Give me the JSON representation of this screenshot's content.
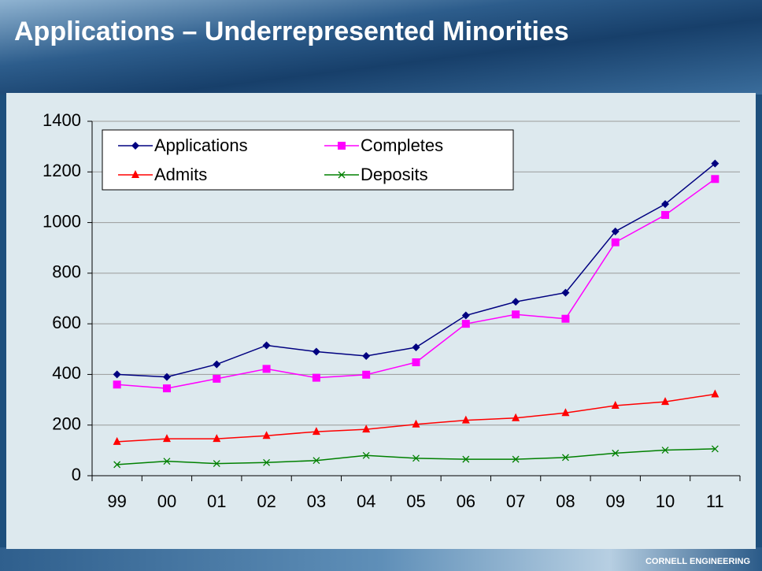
{
  "slide": {
    "title": "Applications – Underrepresented Minorities",
    "footer": "CORNELL ENGINEERING"
  },
  "chart_data": {
    "type": "line",
    "categories": [
      "99",
      "00",
      "01",
      "02",
      "03",
      "04",
      "05",
      "06",
      "07",
      "08",
      "09",
      "10",
      "11"
    ],
    "series": [
      {
        "name": "Applications",
        "color": "#000080",
        "marker": "diamond",
        "values": [
          400,
          390,
          440,
          515,
          490,
          473,
          507,
          633,
          687,
          723,
          965,
          1073,
          1233
        ]
      },
      {
        "name": "Completes",
        "color": "#ff00ff",
        "marker": "square",
        "values": [
          360,
          345,
          383,
          422,
          387,
          399,
          448,
          600,
          637,
          620,
          922,
          1030,
          1172
        ]
      },
      {
        "name": "Admits",
        "color": "#ff0000",
        "marker": "triangle",
        "values": [
          134,
          146,
          146,
          158,
          174,
          183,
          203,
          219,
          228,
          248,
          277,
          292,
          322
        ]
      },
      {
        "name": "Deposits",
        "color": "#008000",
        "marker": "x",
        "values": [
          44,
          57,
          48,
          52,
          60,
          80,
          69,
          65,
          65,
          72,
          89,
          101,
          106
        ]
      }
    ],
    "ylim": [
      0,
      1400
    ],
    "yticks": [
      0,
      200,
      400,
      600,
      800,
      1000,
      1200,
      1400
    ],
    "grid": true,
    "legend": "upper left"
  }
}
